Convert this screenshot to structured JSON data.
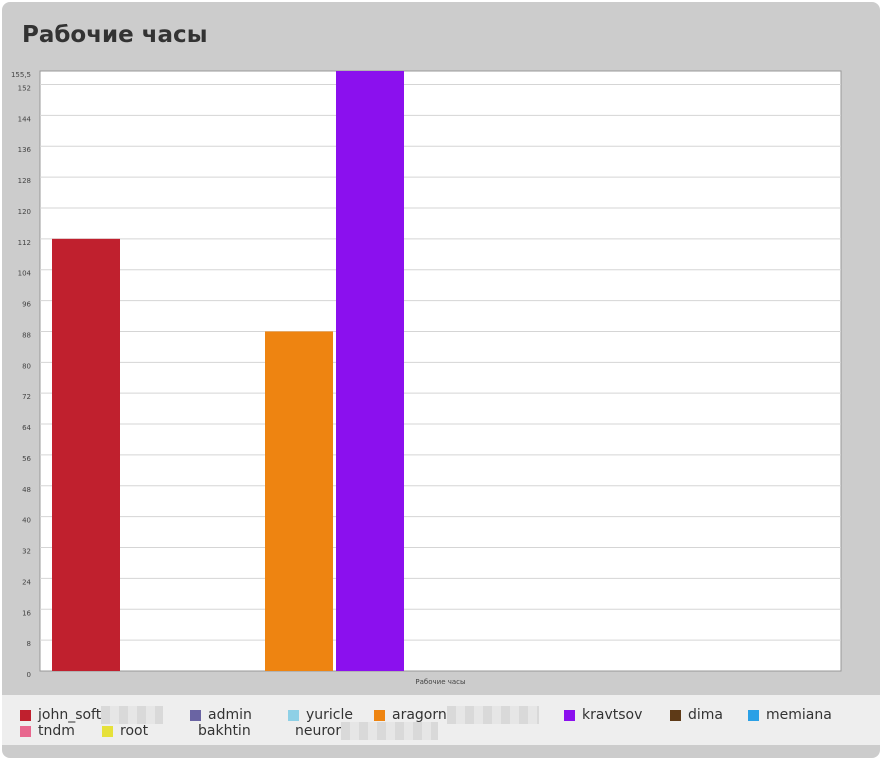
{
  "page": {
    "title": "Рабочие часы"
  },
  "chart_data": {
    "type": "bar",
    "title": "Рабочие часы",
    "xlabel": "Рабочие часы",
    "ylabel": "",
    "ylim": [
      0,
      155.5
    ],
    "y_ticks": [
      "0",
      "8",
      "16",
      "24",
      "32",
      "40",
      "48",
      "56",
      "64",
      "72",
      "80",
      "88",
      "96",
      "104",
      "112",
      "120",
      "128",
      "136",
      "144",
      "152",
      "155,5"
    ],
    "grid": true,
    "legend_position": "bottom",
    "series": [
      {
        "name": "john_soft",
        "value": 112,
        "color": "#c0202e"
      },
      {
        "name": "admin",
        "value": 0,
        "color": "#6a64a3"
      },
      {
        "name": "yuricle",
        "value": 0,
        "color": "#8ed0e6"
      },
      {
        "name": "aragorn",
        "value": 88,
        "color": "#ee8411"
      },
      {
        "name": "kravtsov",
        "value": 155.5,
        "color": "#8b10ee"
      },
      {
        "name": "dima",
        "value": 0,
        "color": "#5e3a17"
      },
      {
        "name": "memiana",
        "value": 0,
        "color": "#2aa0e6"
      },
      {
        "name": "tndm",
        "value": 0,
        "color": "#e8678e"
      },
      {
        "name": "root",
        "value": 0,
        "color": "#e6e13a"
      },
      {
        "name": "bakhtin",
        "value": 0,
        "color": ""
      },
      {
        "name": "neuror",
        "value": 0,
        "color": ""
      }
    ]
  }
}
